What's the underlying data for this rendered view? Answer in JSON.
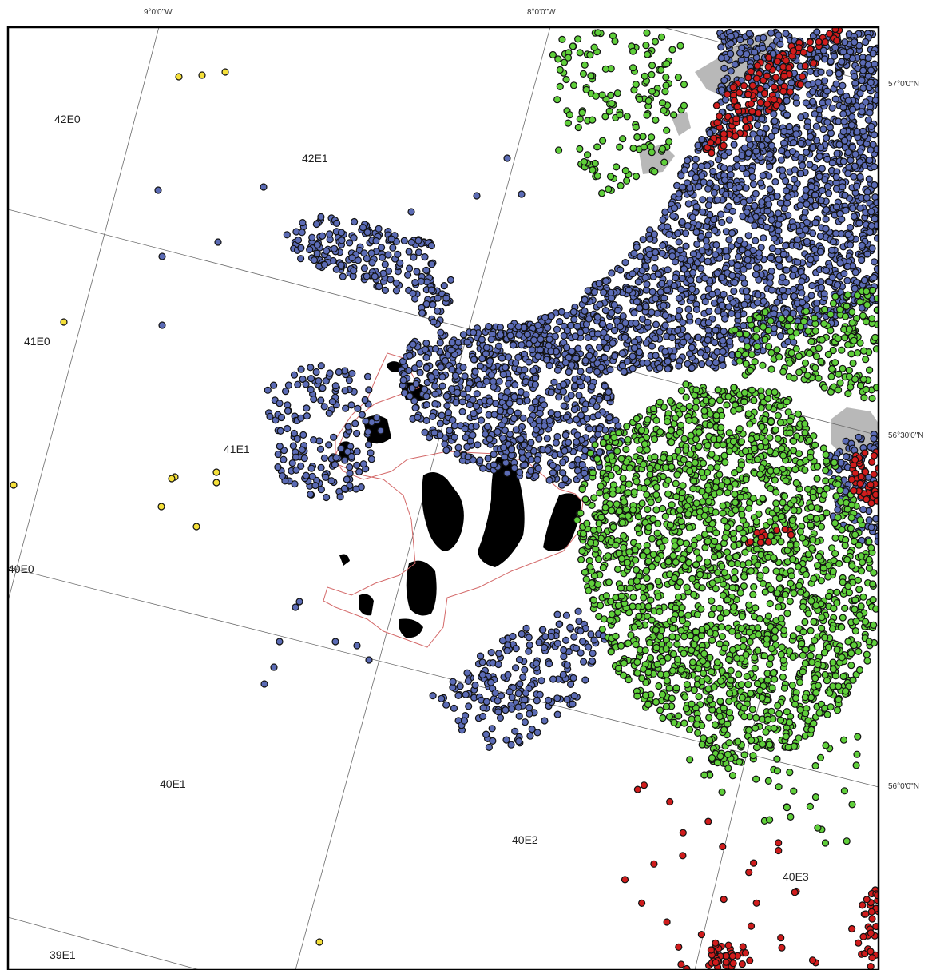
{
  "map": {
    "longitude_labels": [
      "9°0'0\"W",
      "8°0'0\"W"
    ],
    "latitude_labels": [
      "57°0'0\"N",
      "56°30'0\"N",
      "56°0'0\"N"
    ],
    "rectangle_labels": [
      "42E0",
      "42E1",
      "41E0",
      "41E1",
      "40E0",
      "40E1",
      "40E2",
      "40E3",
      "39E1"
    ],
    "colors": {
      "blue_points": "#5b6bb5",
      "green_points": "#5fcf3a",
      "red_points": "#d01c1c",
      "yellow_points": "#f5e03a",
      "land": "#b8b8b8",
      "closed_area_outline": "#d46a6a",
      "dark_patches": "#000000"
    },
    "point_layers": [
      "blue",
      "green",
      "red",
      "yellow"
    ]
  }
}
